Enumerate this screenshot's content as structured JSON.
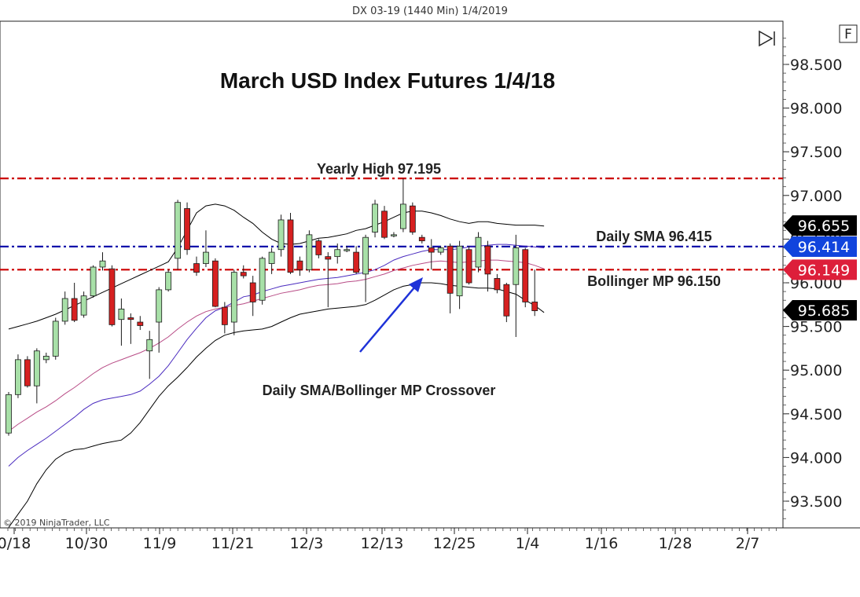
{
  "header": {
    "instrument": "DX 03-19 (1440 Min)  1/4/2019"
  },
  "copyright": "© 2019 NinjaTrader, LLC",
  "controls": {
    "f_button": "F",
    "play_end_icon": "skip-to-end-icon"
  },
  "colors": {
    "bull": "#a8e0a8",
    "bear": "#d62020",
    "candle_outline": "#1a1a1a",
    "resistance": "#cc0000",
    "sma": "#1010aa",
    "upper_band": "#000000",
    "lower_band": "#000000",
    "sma_line": "#4a2bbf",
    "mid_line": "#b84c86",
    "arrow": "#1e32d8"
  },
  "chart_data": {
    "type": "candlestick",
    "title": "March USD Index Futures 1/4/18",
    "y_axis": {
      "ticks": [
        "98.500",
        "98.000",
        "97.500",
        "97.000",
        "96.500",
        "96.000",
        "95.500",
        "95.000",
        "94.500",
        "94.000",
        "93.500"
      ],
      "ylim": [
        93.2,
        98.9
      ],
      "side": "right"
    },
    "x_axis": {
      "ticks": [
        "0/18",
        "10/30",
        "11/9",
        "11/21",
        "12/3",
        "12/13",
        "12/25",
        "1/4",
        "1/16",
        "1/28",
        "2/7"
      ]
    },
    "candles": [
      {
        "o": 94.28,
        "h": 94.75,
        "l": 94.25,
        "c": 94.72
      },
      {
        "o": 94.72,
        "h": 95.18,
        "l": 94.68,
        "c": 95.12
      },
      {
        "o": 95.12,
        "h": 95.16,
        "l": 94.8,
        "c": 94.82
      },
      {
        "o": 94.82,
        "h": 95.25,
        "l": 94.62,
        "c": 95.22
      },
      {
        "o": 95.12,
        "h": 95.2,
        "l": 95.08,
        "c": 95.16
      },
      {
        "o": 95.16,
        "h": 95.6,
        "l": 95.12,
        "c": 95.56
      },
      {
        "o": 95.56,
        "h": 95.9,
        "l": 95.52,
        "c": 95.82
      },
      {
        "o": 95.82,
        "h": 96.0,
        "l": 95.55,
        "c": 95.57
      },
      {
        "o": 95.63,
        "h": 95.9,
        "l": 95.6,
        "c": 95.85
      },
      {
        "o": 95.85,
        "h": 96.2,
        "l": 95.83,
        "c": 96.18
      },
      {
        "o": 96.18,
        "h": 96.35,
        "l": 96.14,
        "c": 96.25
      },
      {
        "o": 96.16,
        "h": 96.2,
        "l": 95.5,
        "c": 95.52
      },
      {
        "o": 95.58,
        "h": 95.82,
        "l": 95.28,
        "c": 95.7
      },
      {
        "o": 95.6,
        "h": 95.65,
        "l": 95.3,
        "c": 95.58
      },
      {
        "o": 95.55,
        "h": 95.62,
        "l": 95.46,
        "c": 95.51
      },
      {
        "o": 95.22,
        "h": 95.45,
        "l": 94.9,
        "c": 95.35
      },
      {
        "o": 95.55,
        "h": 95.95,
        "l": 95.2,
        "c": 95.92
      },
      {
        "o": 95.92,
        "h": 96.15,
        "l": 95.9,
        "c": 96.12
      },
      {
        "o": 96.28,
        "h": 96.95,
        "l": 96.15,
        "c": 96.92
      },
      {
        "o": 96.85,
        "h": 96.92,
        "l": 96.32,
        "c": 96.38
      },
      {
        "o": 96.22,
        "h": 96.3,
        "l": 96.08,
        "c": 96.12
      },
      {
        "o": 96.22,
        "h": 96.6,
        "l": 96.18,
        "c": 96.35
      },
      {
        "o": 96.25,
        "h": 96.28,
        "l": 95.72,
        "c": 95.73
      },
      {
        "o": 95.72,
        "h": 95.78,
        "l": 95.42,
        "c": 95.52
      },
      {
        "o": 95.55,
        "h": 96.15,
        "l": 95.4,
        "c": 96.12
      },
      {
        "o": 96.12,
        "h": 96.2,
        "l": 96.05,
        "c": 96.08
      },
      {
        "o": 96.0,
        "h": 96.08,
        "l": 95.62,
        "c": 95.78
      },
      {
        "o": 95.8,
        "h": 96.3,
        "l": 95.75,
        "c": 96.28
      },
      {
        "o": 96.22,
        "h": 96.4,
        "l": 96.1,
        "c": 96.35
      },
      {
        "o": 96.38,
        "h": 96.78,
        "l": 96.3,
        "c": 96.72
      },
      {
        "o": 96.72,
        "h": 96.8,
        "l": 96.1,
        "c": 96.12
      },
      {
        "o": 96.25,
        "h": 96.3,
        "l": 96.08,
        "c": 96.15
      },
      {
        "o": 96.15,
        "h": 96.6,
        "l": 96.12,
        "c": 96.55
      },
      {
        "o": 96.48,
        "h": 96.5,
        "l": 96.28,
        "c": 96.32
      },
      {
        "o": 96.3,
        "h": 96.35,
        "l": 95.72,
        "c": 96.27
      },
      {
        "o": 96.3,
        "h": 96.45,
        "l": 96.22,
        "c": 96.38
      },
      {
        "o": 96.38,
        "h": 96.42,
        "l": 96.35,
        "c": 96.38
      },
      {
        "o": 96.35,
        "h": 96.42,
        "l": 96.1,
        "c": 96.12
      },
      {
        "o": 96.1,
        "h": 96.55,
        "l": 95.78,
        "c": 96.52
      },
      {
        "o": 96.58,
        "h": 96.95,
        "l": 96.52,
        "c": 96.9
      },
      {
        "o": 96.82,
        "h": 96.88,
        "l": 96.5,
        "c": 96.52
      },
      {
        "o": 96.55,
        "h": 96.58,
        "l": 96.52,
        "c": 96.55
      },
      {
        "o": 96.62,
        "h": 97.195,
        "l": 96.58,
        "c": 96.9
      },
      {
        "o": 96.88,
        "h": 96.92,
        "l": 96.55,
        "c": 96.58
      },
      {
        "o": 96.52,
        "h": 96.55,
        "l": 96.45,
        "c": 96.48
      },
      {
        "o": 96.4,
        "h": 96.5,
        "l": 96.15,
        "c": 96.35
      },
      {
        "o": 96.35,
        "h": 96.42,
        "l": 96.32,
        "c": 96.4
      },
      {
        "o": 96.42,
        "h": 96.45,
        "l": 95.65,
        "c": 95.88
      },
      {
        "o": 95.85,
        "h": 96.48,
        "l": 95.7,
        "c": 96.42
      },
      {
        "o": 96.38,
        "h": 96.42,
        "l": 95.98,
        "c": 96.0
      },
      {
        "o": 96.18,
        "h": 96.58,
        "l": 96.12,
        "c": 96.52
      },
      {
        "o": 96.42,
        "h": 96.48,
        "l": 95.9,
        "c": 96.1
      },
      {
        "o": 96.05,
        "h": 96.1,
        "l": 95.88,
        "c": 95.92
      },
      {
        "o": 95.98,
        "h": 96.0,
        "l": 95.55,
        "c": 95.62
      },
      {
        "o": 95.98,
        "h": 96.55,
        "l": 95.38,
        "c": 96.4
      },
      {
        "o": 96.38,
        "h": 96.4,
        "l": 95.72,
        "c": 95.78
      },
      {
        "o": 95.78,
        "h": 96.15,
        "l": 95.62,
        "c": 95.68
      }
    ],
    "indicators": {
      "upper_band": [
        95.47,
        95.5,
        95.53,
        95.56,
        95.6,
        95.64,
        95.69,
        95.74,
        95.79,
        95.84,
        95.89,
        95.94,
        95.99,
        96.04,
        96.09,
        96.14,
        96.19,
        96.24,
        96.4,
        96.6,
        96.8,
        96.88,
        96.9,
        96.88,
        96.83,
        96.75,
        96.68,
        96.58,
        96.5,
        96.45,
        96.44,
        96.45,
        96.48,
        96.51,
        96.52,
        96.54,
        96.56,
        96.6,
        96.62,
        96.66,
        96.7,
        96.75,
        96.8,
        96.82,
        96.82,
        96.8,
        96.77,
        96.73,
        96.7,
        96.68,
        96.7,
        96.7,
        96.68,
        96.67,
        96.66,
        96.66,
        96.66,
        96.65
      ],
      "sma_line": [
        93.9,
        94.0,
        94.08,
        94.15,
        94.22,
        94.3,
        94.38,
        94.46,
        94.55,
        94.62,
        94.66,
        94.68,
        94.7,
        94.72,
        94.76,
        94.84,
        94.93,
        95.05,
        95.2,
        95.35,
        95.48,
        95.6,
        95.68,
        95.72,
        95.78,
        95.84,
        95.86,
        95.9,
        95.93,
        95.96,
        95.98,
        96.0,
        96.02,
        96.04,
        96.05,
        96.06,
        96.08,
        96.1,
        96.12,
        96.15,
        96.2,
        96.26,
        96.3,
        96.33,
        96.36,
        96.38,
        96.38,
        96.38,
        96.39,
        96.41,
        96.42,
        96.43,
        96.44,
        96.44,
        96.43,
        96.42,
        96.41,
        96.4
      ],
      "mid_line": [
        94.3,
        94.38,
        94.45,
        94.52,
        94.58,
        94.65,
        94.73,
        94.8,
        94.88,
        94.96,
        95.03,
        95.08,
        95.12,
        95.16,
        95.2,
        95.25,
        95.31,
        95.38,
        95.47,
        95.55,
        95.62,
        95.67,
        95.7,
        95.72,
        95.74,
        95.76,
        95.79,
        95.82,
        95.85,
        95.88,
        95.9,
        95.92,
        95.95,
        95.97,
        95.98,
        95.99,
        96.01,
        96.02,
        96.04,
        96.07,
        96.1,
        96.14,
        96.17,
        96.2,
        96.22,
        96.24,
        96.25,
        96.24,
        96.23,
        96.24,
        96.25,
        96.26,
        96.26,
        96.25,
        96.24,
        96.23,
        96.2,
        96.16
      ],
      "lower_band": [
        93.2,
        93.35,
        93.5,
        93.7,
        93.86,
        93.98,
        94.05,
        94.09,
        94.1,
        94.13,
        94.16,
        94.18,
        94.2,
        94.28,
        94.4,
        94.55,
        94.7,
        94.82,
        94.92,
        95.03,
        95.15,
        95.25,
        95.34,
        95.4,
        95.43,
        95.45,
        95.46,
        95.47,
        95.5,
        95.55,
        95.6,
        95.64,
        95.66,
        95.68,
        95.7,
        95.71,
        95.72,
        95.73,
        95.75,
        95.8,
        95.86,
        95.92,
        95.96,
        95.98,
        96.0,
        96.0,
        95.99,
        95.97,
        95.96,
        95.95,
        95.94,
        95.94,
        95.93,
        95.9,
        95.87,
        95.8,
        95.74,
        95.66
      ]
    },
    "levels": [
      {
        "name": "yearly_high",
        "value": 97.195,
        "label": "Yearly High 97.195",
        "style": "dash-dot",
        "color": "#cc0000"
      },
      {
        "name": "daily_sma",
        "value": 96.415,
        "label": "Daily SMA 96.415",
        "style": "dash-dot",
        "color": "#1010aa"
      },
      {
        "name": "bollinger_mp",
        "value": 96.15,
        "label": "Bollinger MP 96.150",
        "style": "dash-dot",
        "color": "#cc0000"
      }
    ],
    "price_badges": [
      {
        "value": 96.655,
        "label": "96.655",
        "bg": "#000000"
      },
      {
        "value": 96.414,
        "label": "96.414",
        "bg": "#1144dd"
      },
      {
        "value": 96.149,
        "label": "96.149",
        "bg": "#dd1f3a"
      },
      {
        "value": 95.685,
        "label": "95.685",
        "bg": "#000000"
      }
    ],
    "annotations": [
      {
        "text": "Daily SMA/Bollinger MP Crossover",
        "points_to_candle": 48
      }
    ]
  }
}
